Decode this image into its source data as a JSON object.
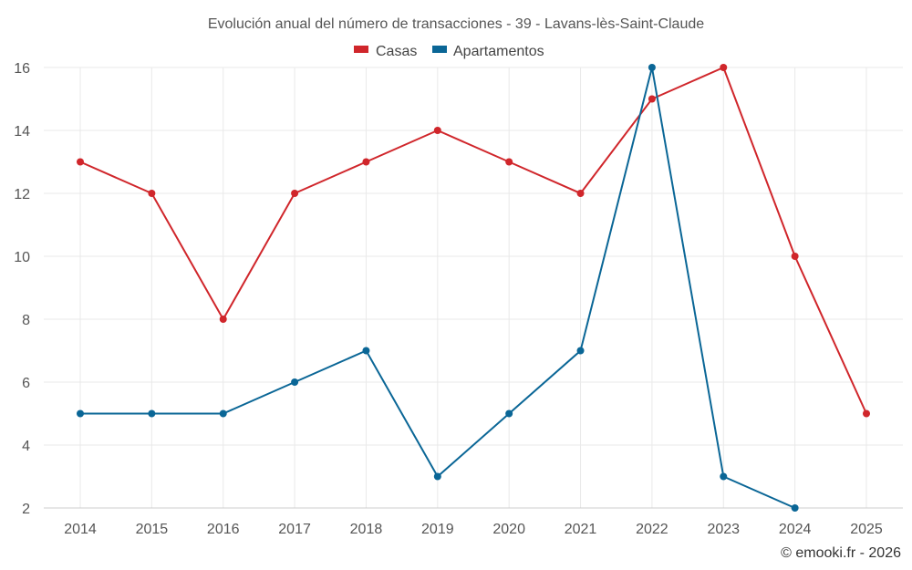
{
  "chart_data": {
    "type": "line",
    "title": "Evolución anual del número de transacciones - 39 - Lavans-lès-Saint-Claude",
    "categories": [
      "2014",
      "2015",
      "2016",
      "2017",
      "2018",
      "2019",
      "2020",
      "2021",
      "2022",
      "2023",
      "2024",
      "2025"
    ],
    "series": [
      {
        "name": "Casas",
        "color": "#d0262b",
        "values": [
          13,
          12,
          8,
          12,
          13,
          14,
          13,
          12,
          15,
          16,
          10,
          5
        ]
      },
      {
        "name": "Apartamentos",
        "color": "#0a6696",
        "values": [
          5,
          5,
          5,
          6,
          7,
          3,
          5,
          7,
          16,
          3,
          2,
          null
        ]
      }
    ],
    "ylim": [
      2,
      16
    ],
    "yticks": [
      2,
      4,
      6,
      8,
      10,
      12,
      14,
      16
    ],
    "xlabel": "",
    "ylabel": "",
    "grid": true,
    "legend_position": "top-center"
  },
  "credit": "© emooki.fr - 2026"
}
